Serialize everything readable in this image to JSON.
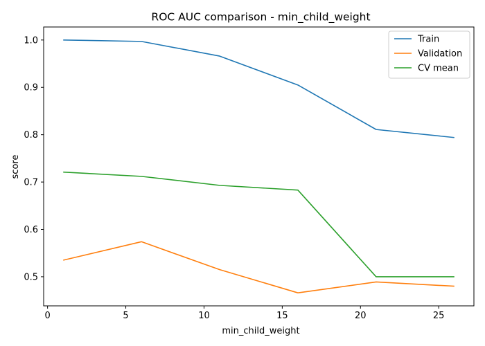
{
  "chart_data": {
    "type": "line",
    "title": "ROC AUC comparison - min_child_weight",
    "xlabel": "min_child_weight",
    "ylabel": "score",
    "x": [
      1,
      6,
      11,
      16,
      21,
      26
    ],
    "xlim": [
      -0.25,
      27.25
    ],
    "ylim": [
      0.4385,
      1.0275
    ],
    "xticks": [
      0,
      5,
      10,
      15,
      20,
      25
    ],
    "yticks": [
      0.5,
      0.6,
      0.7,
      0.8,
      0.9,
      1.0
    ],
    "xtick_labels": [
      "0",
      "5",
      "10",
      "15",
      "20",
      "25"
    ],
    "ytick_labels": [
      "0.5",
      "0.6",
      "0.7",
      "0.8",
      "0.9",
      "1.0"
    ],
    "grid": false,
    "legend_position": "top-right",
    "series": [
      {
        "name": "Train",
        "color": "#1f77b4",
        "values": [
          1.0,
          0.997,
          0.966,
          0.905,
          0.811,
          0.794
        ]
      },
      {
        "name": "Validation",
        "color": "#ff7f0e",
        "values": [
          0.535,
          0.574,
          0.515,
          0.466,
          0.489,
          0.48
        ]
      },
      {
        "name": "CV mean",
        "color": "#2ca02c",
        "values": [
          0.721,
          0.712,
          0.693,
          0.683,
          0.5,
          0.5
        ]
      }
    ]
  }
}
